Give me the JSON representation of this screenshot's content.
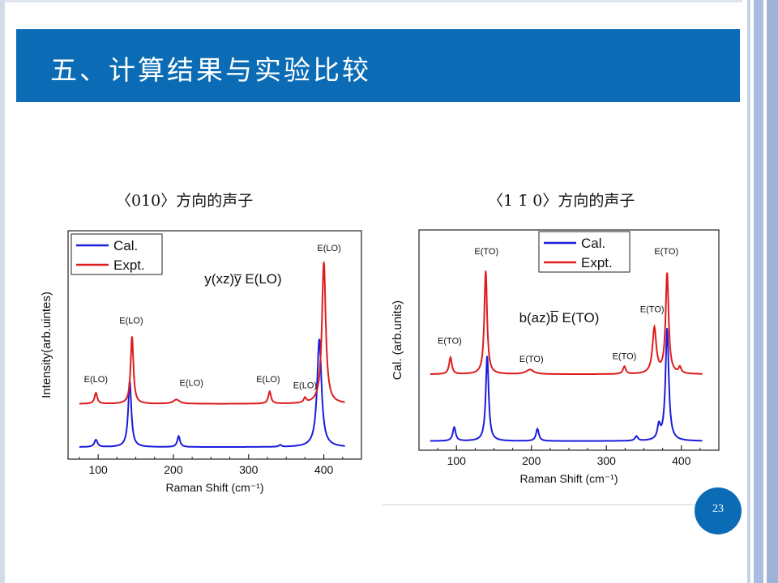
{
  "slide": {
    "title": "五、计算结果与实验比较",
    "page_number": "23",
    "accent_color": "#0b6cb5",
    "left_caption": "〈010〉方向的声子",
    "right_caption": "〈1 1̄ 0〉方向的声子"
  },
  "chart_data": [
    {
      "type": "line",
      "annotation": "y(xz)y̅  E(LO)",
      "xlabel": "Raman Shift (cm⁻¹)",
      "ylabel": "Intensity(arb.uintes)",
      "xlim": [
        60,
        450
      ],
      "x_ticks": [
        100,
        200,
        300,
        400
      ],
      "legend_position": "top-left",
      "series": [
        {
          "name": "Cal.",
          "color": "#1c1cdc",
          "baseline": 0.1,
          "peaks": [
            {
              "x": 97,
              "h": 0.06,
              "w": 2.5
            },
            {
              "x": 142,
              "h": 0.55,
              "w": 2.5
            },
            {
              "x": 207,
              "h": 0.09,
              "w": 2.2
            },
            {
              "x": 342,
              "h": 0.015,
              "w": 2
            },
            {
              "x": 394,
              "h": 0.9,
              "w": 3.5
            }
          ]
        },
        {
          "name": "Expt.",
          "color": "#dd1c1c",
          "baseline": 0.46,
          "peaks": [
            {
              "x": 97,
              "h": 0.09,
              "w": 2.2
            },
            {
              "x": 145,
              "h": 0.56,
              "w": 2.2
            },
            {
              "x": 204,
              "h": 0.035,
              "w": 5
            },
            {
              "x": 328,
              "h": 0.1,
              "w": 2.2
            },
            {
              "x": 375,
              "h": 0.04,
              "w": 2
            },
            {
              "x": 400,
              "h": 1.18,
              "w": 3
            }
          ]
        }
      ],
      "peak_labels": [
        {
          "text": "E(LO)",
          "x": 97,
          "y": 0.64
        },
        {
          "text": "E(LO)",
          "x": 144,
          "y": 1.13
        },
        {
          "text": "E(LO)",
          "x": 224,
          "y": 0.61
        },
        {
          "text": "E(LO)",
          "x": 326,
          "y": 0.64
        },
        {
          "text": "E(LO)",
          "x": 375,
          "y": 0.59
        },
        {
          "text": "E(LO)",
          "x": 407,
          "y": 1.73
        }
      ]
    },
    {
      "type": "line",
      "annotation": "b(az)b̅  E(TO)",
      "xlabel": "Raman Shift (cm⁻¹)",
      "ylabel": "Cal. (arb.units)",
      "xlim": [
        50,
        450
      ],
      "x_ticks": [
        100,
        200,
        300,
        400
      ],
      "legend_position": "top-center",
      "series": [
        {
          "name": "Cal.",
          "color": "#1c1cdc",
          "baseline": 0.06,
          "peaks": [
            {
              "x": 97,
              "h": 0.09,
              "w": 2.3
            },
            {
              "x": 141,
              "h": 0.56,
              "w": 2.3
            },
            {
              "x": 208,
              "h": 0.08,
              "w": 2.3
            },
            {
              "x": 340,
              "h": 0.03,
              "w": 2.3
            },
            {
              "x": 370,
              "h": 0.09,
              "w": 2.3
            },
            {
              "x": 381,
              "h": 0.74,
              "w": 2.6
            }
          ]
        },
        {
          "name": "Expt.",
          "color": "#dd1c1c",
          "baseline": 0.5,
          "peaks": [
            {
              "x": 92,
              "h": 0.11,
              "w": 2.2
            },
            {
              "x": 139,
              "h": 0.68,
              "w": 2.2
            },
            {
              "x": 198,
              "h": 0.03,
              "w": 6
            },
            {
              "x": 324,
              "h": 0.05,
              "w": 2.2
            },
            {
              "x": 364,
              "h": 0.3,
              "w": 3
            },
            {
              "x": 381,
              "h": 0.66,
              "w": 2.4
            },
            {
              "x": 398,
              "h": 0.04,
              "w": 2
            }
          ]
        }
      ],
      "peak_labels": [
        {
          "text": "E(TO)",
          "x": 91,
          "y": 0.7
        },
        {
          "text": "E(TO)",
          "x": 140,
          "y": 1.29
        },
        {
          "text": "E(TO)",
          "x": 200,
          "y": 0.58
        },
        {
          "text": "E(TO)",
          "x": 324,
          "y": 0.6
        },
        {
          "text": "E(TO)",
          "x": 361,
          "y": 0.91
        },
        {
          "text": "E(TO)",
          "x": 380,
          "y": 1.29
        }
      ]
    }
  ]
}
